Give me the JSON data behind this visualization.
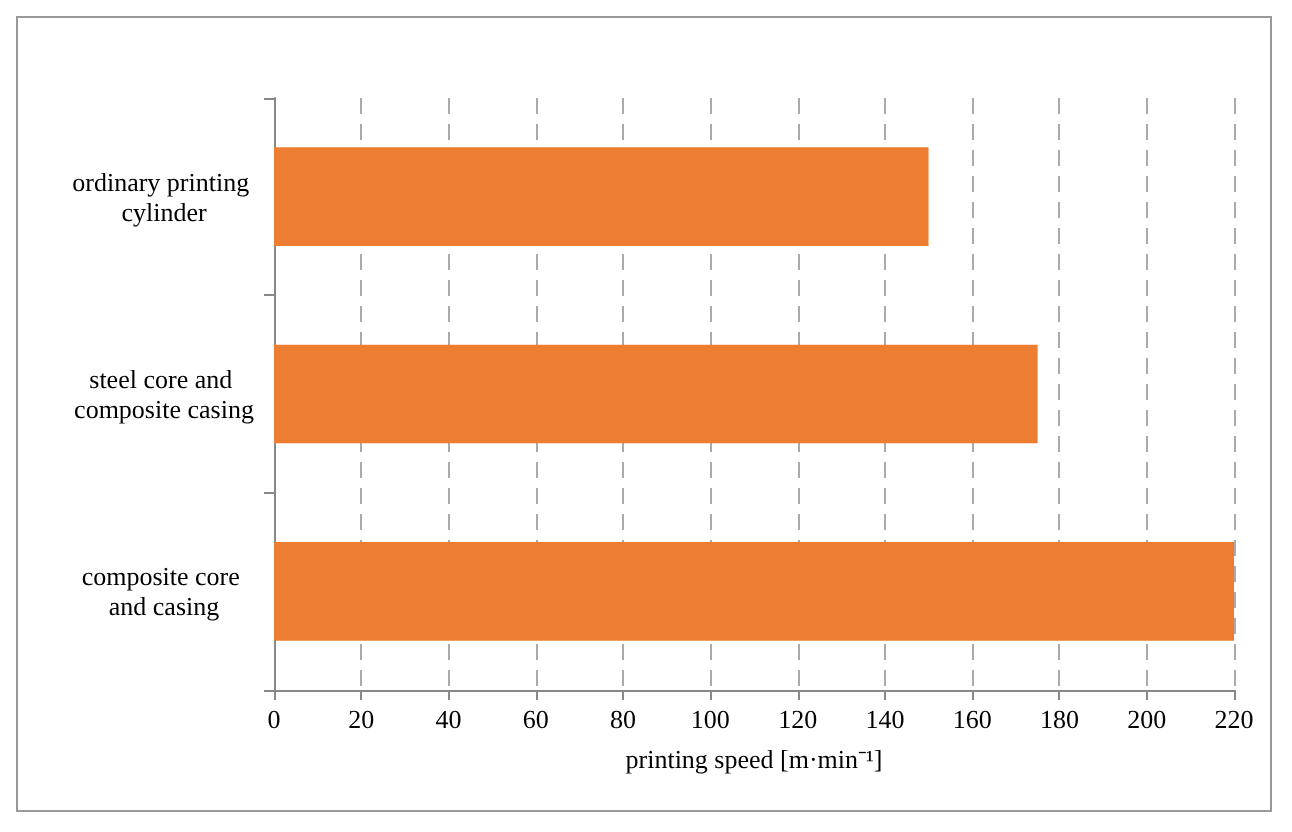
{
  "chart_data": {
    "type": "bar",
    "orientation": "horizontal",
    "xlabel": "printing speed [m·min⁻¹]",
    "categories": [
      "ordinary printing cylinder",
      "steel core and composite casing",
      "composite core and casing"
    ],
    "values": [
      150,
      175,
      220
    ],
    "color": "#ed7d31",
    "xlim": [
      0,
      220
    ],
    "xticks": [
      0,
      20,
      40,
      60,
      80,
      100,
      120,
      140,
      160,
      180,
      200,
      220
    ],
    "grid": "x"
  }
}
